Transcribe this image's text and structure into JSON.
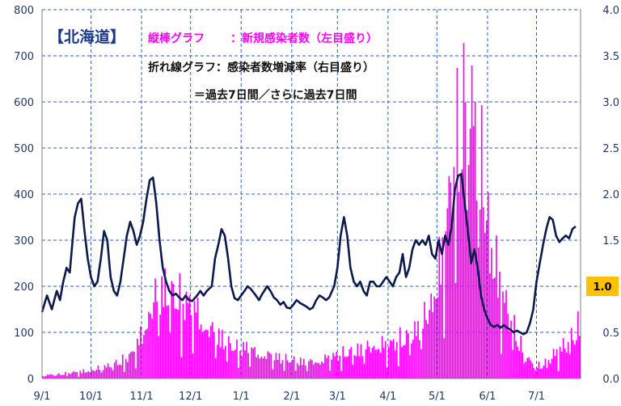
{
  "chart_data": {
    "type": "bar+line",
    "region_title": "【北海道】",
    "legend": {
      "bar_label": "縦棒グラフ",
      "bar_desc": "：新規感染者数（左目盛り）",
      "line_label": "折れ線グラフ：感染者数増減率（右目盛り）",
      "line_desc": "＝過去7日間／さらに過去7日間"
    },
    "y_left": {
      "min": 0,
      "max": 800,
      "ticks": [
        "0",
        "100",
        "200",
        "300",
        "400",
        "500",
        "600",
        "700",
        "800"
      ]
    },
    "y_right": {
      "min": 0,
      "max": 4,
      "ticks": [
        "0.0",
        "0.5",
        "1.0",
        "1.5",
        "2.0",
        "2.5",
        "3.0",
        "3.5",
        "4.0"
      ]
    },
    "x_labels": [
      "9/1",
      "10/1",
      "11/1",
      "12/1",
      "1/1",
      "2/1",
      "3/1",
      "4/1",
      "5/1",
      "6/1",
      "7/1"
    ],
    "x_label_days": [
      0,
      30,
      61,
      91,
      122,
      153,
      181,
      212,
      242,
      273,
      303
    ],
    "total_days": 330,
    "reference_badge": "1.0",
    "colors": {
      "bars": "#ff00ff",
      "line": "#0d1b4c",
      "grid": "#2f5fbf",
      "badge": "#ffc000"
    },
    "bar_keypoints": [
      [
        0,
        8
      ],
      [
        10,
        10
      ],
      [
        20,
        15
      ],
      [
        30,
        20
      ],
      [
        40,
        30
      ],
      [
        50,
        45
      ],
      [
        55,
        60
      ],
      [
        60,
        100
      ],
      [
        65,
        160
      ],
      [
        70,
        200
      ],
      [
        75,
        215
      ],
      [
        80,
        200
      ],
      [
        85,
        190
      ],
      [
        90,
        175
      ],
      [
        95,
        160
      ],
      [
        100,
        130
      ],
      [
        105,
        110
      ],
      [
        110,
        95
      ],
      [
        115,
        80
      ],
      [
        120,
        70
      ],
      [
        125,
        75
      ],
      [
        130,
        65
      ],
      [
        135,
        60
      ],
      [
        140,
        55
      ],
      [
        145,
        50
      ],
      [
        150,
        45
      ],
      [
        155,
        42
      ],
      [
        160,
        40
      ],
      [
        165,
        40
      ],
      [
        170,
        45
      ],
      [
        175,
        50
      ],
      [
        180,
        55
      ],
      [
        185,
        60
      ],
      [
        190,
        65
      ],
      [
        195,
        70
      ],
      [
        200,
        75
      ],
      [
        205,
        85
      ],
      [
        210,
        80
      ],
      [
        215,
        85
      ],
      [
        220,
        95
      ],
      [
        225,
        100
      ],
      [
        230,
        120
      ],
      [
        235,
        150
      ],
      [
        240,
        220
      ],
      [
        245,
        300
      ],
      [
        250,
        450
      ],
      [
        255,
        600
      ],
      [
        260,
        680
      ],
      [
        265,
        600
      ],
      [
        270,
        480
      ],
      [
        275,
        330
      ],
      [
        280,
        230
      ],
      [
        285,
        160
      ],
      [
        290,
        110
      ],
      [
        295,
        60
      ],
      [
        300,
        35
      ],
      [
        305,
        30
      ],
      [
        310,
        45
      ],
      [
        315,
        65
      ],
      [
        320,
        80
      ],
      [
        325,
        105
      ],
      [
        329,
        130
      ]
    ],
    "line_keypoints": [
      [
        0,
        0.72
      ],
      [
        3,
        0.9
      ],
      [
        6,
        0.75
      ],
      [
        9,
        0.95
      ],
      [
        11,
        0.85
      ],
      [
        13,
        1.05
      ],
      [
        15,
        1.2
      ],
      [
        17,
        1.15
      ],
      [
        20,
        1.75
      ],
      [
        22,
        1.9
      ],
      [
        24,
        1.95
      ],
      [
        26,
        1.6
      ],
      [
        28,
        1.3
      ],
      [
        30,
        1.1
      ],
      [
        32,
        1.0
      ],
      [
        34,
        1.05
      ],
      [
        36,
        1.3
      ],
      [
        38,
        1.6
      ],
      [
        40,
        1.5
      ],
      [
        42,
        1.1
      ],
      [
        44,
        0.95
      ],
      [
        46,
        0.9
      ],
      [
        48,
        1.05
      ],
      [
        50,
        1.3
      ],
      [
        52,
        1.55
      ],
      [
        54,
        1.7
      ],
      [
        56,
        1.6
      ],
      [
        58,
        1.45
      ],
      [
        60,
        1.55
      ],
      [
        62,
        1.7
      ],
      [
        64,
        1.95
      ],
      [
        66,
        2.15
      ],
      [
        68,
        2.18
      ],
      [
        70,
        1.9
      ],
      [
        72,
        1.5
      ],
      [
        74,
        1.2
      ],
      [
        76,
        1.05
      ],
      [
        78,
        0.95
      ],
      [
        80,
        0.9
      ],
      [
        82,
        0.92
      ],
      [
        84,
        0.88
      ],
      [
        86,
        0.85
      ],
      [
        88,
        0.9
      ],
      [
        90,
        0.85
      ],
      [
        92,
        0.84
      ],
      [
        95,
        0.9
      ],
      [
        97,
        0.95
      ],
      [
        99,
        0.9
      ],
      [
        101,
        0.95
      ],
      [
        104,
        1.0
      ],
      [
        106,
        1.3
      ],
      [
        108,
        1.45
      ],
      [
        110,
        1.62
      ],
      [
        112,
        1.55
      ],
      [
        114,
        1.3
      ],
      [
        116,
        1.0
      ],
      [
        118,
        0.87
      ],
      [
        120,
        0.85
      ],
      [
        122,
        0.9
      ],
      [
        124,
        0.95
      ],
      [
        126,
        1.0
      ],
      [
        128,
        0.97
      ],
      [
        131,
        0.9
      ],
      [
        133,
        0.85
      ],
      [
        135,
        0.92
      ],
      [
        138,
        1.0
      ],
      [
        140,
        0.95
      ],
      [
        142,
        0.88
      ],
      [
        144,
        0.85
      ],
      [
        146,
        0.8
      ],
      [
        148,
        0.83
      ],
      [
        150,
        0.77
      ],
      [
        152,
        0.76
      ],
      [
        154,
        0.8
      ],
      [
        156,
        0.85
      ],
      [
        158,
        0.82
      ],
      [
        160,
        0.8
      ],
      [
        162,
        0.78
      ],
      [
        164,
        0.75
      ],
      [
        166,
        0.77
      ],
      [
        168,
        0.85
      ],
      [
        170,
        0.9
      ],
      [
        172,
        0.88
      ],
      [
        174,
        0.85
      ],
      [
        176,
        0.88
      ],
      [
        179,
        1.0
      ],
      [
        181,
        1.2
      ],
      [
        183,
        1.55
      ],
      [
        185,
        1.75
      ],
      [
        187,
        1.55
      ],
      [
        189,
        1.2
      ],
      [
        191,
        1.05
      ],
      [
        193,
        1.0
      ],
      [
        195,
        1.05
      ],
      [
        197,
        0.95
      ],
      [
        199,
        0.9
      ],
      [
        201,
        1.05
      ],
      [
        203,
        1.05
      ],
      [
        205,
        1.0
      ],
      [
        207,
        1.0
      ],
      [
        209,
        1.05
      ],
      [
        211,
        1.1
      ],
      [
        213,
        1.05
      ],
      [
        215,
        1.0
      ],
      [
        217,
        1.1
      ],
      [
        219,
        1.15
      ],
      [
        221,
        1.35
      ],
      [
        223,
        1.1
      ],
      [
        225,
        1.2
      ],
      [
        227,
        1.4
      ],
      [
        229,
        1.5
      ],
      [
        231,
        1.45
      ],
      [
        233,
        1.5
      ],
      [
        235,
        1.45
      ],
      [
        237,
        1.55
      ],
      [
        239,
        1.35
      ],
      [
        241,
        1.3
      ],
      [
        243,
        1.5
      ],
      [
        245,
        1.35
      ],
      [
        247,
        1.55
      ],
      [
        249,
        1.45
      ],
      [
        251,
        1.65
      ],
      [
        253,
        2.05
      ],
      [
        255,
        2.2
      ],
      [
        257,
        2.22
      ],
      [
        259,
        1.9
      ],
      [
        261,
        1.6
      ],
      [
        263,
        1.25
      ],
      [
        265,
        1.4
      ],
      [
        267,
        1.2
      ],
      [
        269,
        0.9
      ],
      [
        271,
        0.75
      ],
      [
        273,
        0.65
      ],
      [
        275,
        0.58
      ],
      [
        277,
        0.56
      ],
      [
        279,
        0.58
      ],
      [
        281,
        0.55
      ],
      [
        283,
        0.58
      ],
      [
        285,
        0.55
      ],
      [
        287,
        0.53
      ],
      [
        289,
        0.5
      ],
      [
        291,
        0.52
      ],
      [
        293,
        0.5
      ],
      [
        295,
        0.48
      ],
      [
        297,
        0.5
      ],
      [
        299,
        0.6
      ],
      [
        301,
        0.75
      ],
      [
        303,
        1.05
      ],
      [
        305,
        1.25
      ],
      [
        307,
        1.45
      ],
      [
        309,
        1.62
      ],
      [
        311,
        1.75
      ],
      [
        313,
        1.72
      ],
      [
        315,
        1.55
      ],
      [
        317,
        1.48
      ],
      [
        319,
        1.52
      ],
      [
        321,
        1.55
      ],
      [
        323,
        1.52
      ],
      [
        325,
        1.62
      ],
      [
        327,
        1.65
      ]
    ]
  }
}
